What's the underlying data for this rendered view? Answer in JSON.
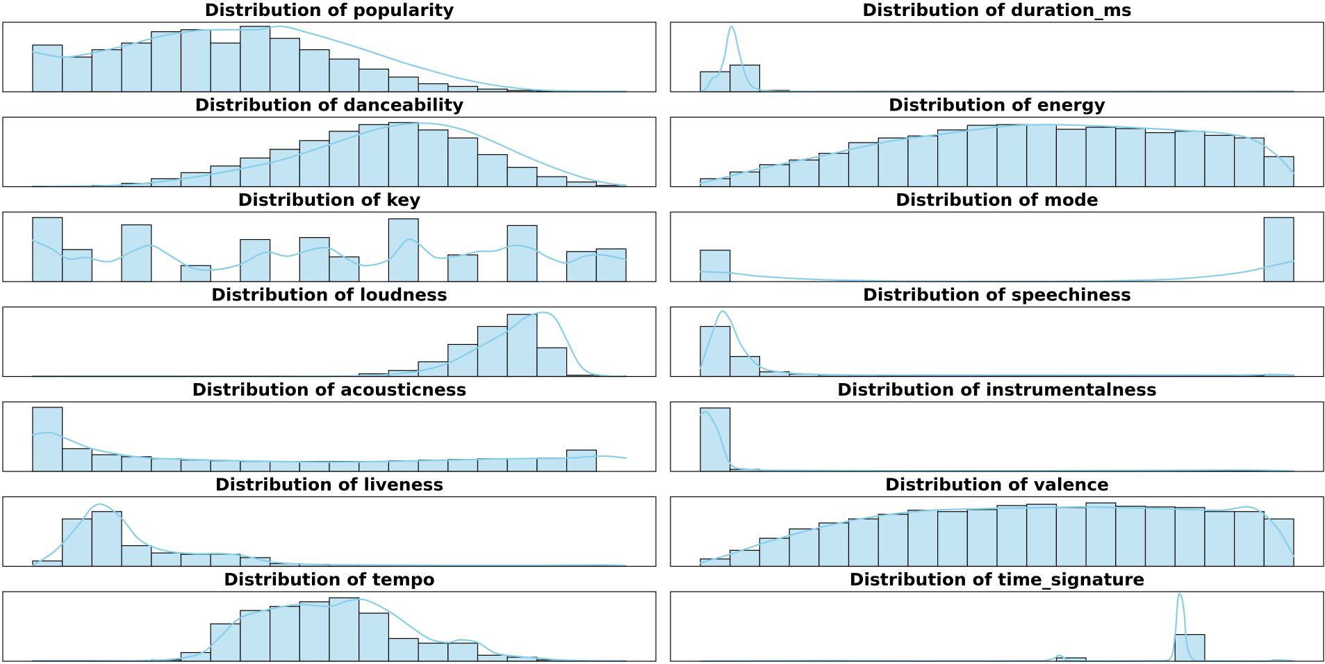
{
  "style": {
    "bar_fill": "#c3e5f3",
    "bar_edge": "#000000",
    "kde_color": "#87ceeb"
  },
  "chart_data": [
    {
      "type": "bar",
      "title": "Distribution of popularity",
      "values": [
        0.7,
        0.52,
        0.63,
        0.73,
        0.9,
        0.93,
        0.73,
        0.98,
        0.8,
        0.63,
        0.49,
        0.34,
        0.22,
        0.12,
        0.08,
        0.04,
        0.02,
        0.01,
        0.005,
        0.003
      ],
      "ylim": [
        0,
        1
      ],
      "kde": [
        [
          0.0,
          0.6
        ],
        [
          0.05,
          0.52
        ],
        [
          0.1,
          0.58
        ],
        [
          0.16,
          0.7
        ],
        [
          0.22,
          0.84
        ],
        [
          0.28,
          0.92
        ],
        [
          0.33,
          0.93
        ],
        [
          0.38,
          0.93
        ],
        [
          0.42,
          0.98
        ],
        [
          0.47,
          0.87
        ],
        [
          0.52,
          0.74
        ],
        [
          0.57,
          0.6
        ],
        [
          0.62,
          0.45
        ],
        [
          0.67,
          0.32
        ],
        [
          0.72,
          0.2
        ],
        [
          0.77,
          0.11
        ],
        [
          0.82,
          0.05
        ],
        [
          0.87,
          0.02
        ],
        [
          0.93,
          0.01
        ],
        [
          1.0,
          0.003
        ]
      ]
    },
    {
      "type": "bar",
      "title": "Distribution of duration_ms",
      "values": [
        0.3,
        0.4,
        0.02,
        0.005,
        0.003,
        0.002,
        0.001,
        0.001,
        0.001,
        0.001,
        0.001,
        0.001,
        0.001,
        0.001,
        0.001,
        0.001,
        0.001,
        0.001,
        0.001,
        0.001
      ],
      "ylim": [
        0,
        1
      ],
      "kde": [
        [
          0.0,
          0.0
        ],
        [
          0.01,
          0.05
        ],
        [
          0.02,
          0.2
        ],
        [
          0.03,
          0.25
        ],
        [
          0.04,
          0.5
        ],
        [
          0.047,
          0.85
        ],
        [
          0.052,
          0.98
        ],
        [
          0.058,
          0.88
        ],
        [
          0.065,
          0.6
        ],
        [
          0.075,
          0.28
        ],
        [
          0.085,
          0.1
        ],
        [
          0.1,
          0.03
        ],
        [
          0.12,
          0.01
        ],
        [
          0.16,
          0.005
        ],
        [
          0.3,
          0.002
        ],
        [
          1.0,
          0.001
        ]
      ]
    },
    {
      "type": "bar",
      "title": "Distribution of danceability",
      "values": [
        0.005,
        0.01,
        0.02,
        0.05,
        0.12,
        0.21,
        0.31,
        0.43,
        0.56,
        0.69,
        0.83,
        0.93,
        0.96,
        0.85,
        0.73,
        0.48,
        0.29,
        0.15,
        0.07,
        0.02
      ],
      "ylim": [
        0,
        1
      ],
      "kde": [
        [
          0.0,
          0.002
        ],
        [
          0.07,
          0.008
        ],
        [
          0.14,
          0.02
        ],
        [
          0.2,
          0.06
        ],
        [
          0.27,
          0.14
        ],
        [
          0.34,
          0.25
        ],
        [
          0.41,
          0.38
        ],
        [
          0.47,
          0.54
        ],
        [
          0.53,
          0.72
        ],
        [
          0.58,
          0.86
        ],
        [
          0.63,
          0.94
        ],
        [
          0.68,
          0.94
        ],
        [
          0.73,
          0.84
        ],
        [
          0.78,
          0.66
        ],
        [
          0.83,
          0.46
        ],
        [
          0.88,
          0.28
        ],
        [
          0.93,
          0.13
        ],
        [
          0.97,
          0.05
        ],
        [
          1.0,
          0.02
        ]
      ]
    },
    {
      "type": "bar",
      "title": "Distribution of energy",
      "values": [
        0.12,
        0.22,
        0.33,
        0.4,
        0.5,
        0.66,
        0.73,
        0.76,
        0.85,
        0.92,
        0.93,
        0.93,
        0.86,
        0.89,
        0.87,
        0.81,
        0.83,
        0.77,
        0.73,
        0.45
      ],
      "ylim": [
        0,
        1
      ],
      "kde": [
        [
          0.0,
          0.05
        ],
        [
          0.05,
          0.16
        ],
        [
          0.1,
          0.27
        ],
        [
          0.16,
          0.38
        ],
        [
          0.22,
          0.49
        ],
        [
          0.28,
          0.61
        ],
        [
          0.34,
          0.71
        ],
        [
          0.4,
          0.78
        ],
        [
          0.46,
          0.85
        ],
        [
          0.52,
          0.91
        ],
        [
          0.58,
          0.93
        ],
        [
          0.64,
          0.92
        ],
        [
          0.7,
          0.9
        ],
        [
          0.76,
          0.87
        ],
        [
          0.82,
          0.84
        ],
        [
          0.88,
          0.8
        ],
        [
          0.93,
          0.71
        ],
        [
          0.97,
          0.48
        ],
        [
          1.0,
          0.2
        ]
      ]
    },
    {
      "type": "bar",
      "title": "Distribution of key",
      "values": [
        0.96,
        0.48,
        0,
        0.85,
        0,
        0.24,
        0,
        0.63,
        0,
        0.66,
        0.37,
        0,
        0.94,
        0,
        0.4,
        0,
        0.84,
        0,
        0.45,
        0.49
      ],
      "ylim": [
        0,
        1
      ],
      "kde": [
        [
          0.0,
          0.62
        ],
        [
          0.03,
          0.5
        ],
        [
          0.06,
          0.34
        ],
        [
          0.09,
          0.36
        ],
        [
          0.13,
          0.3
        ],
        [
          0.17,
          0.46
        ],
        [
          0.2,
          0.54
        ],
        [
          0.23,
          0.4
        ],
        [
          0.27,
          0.2
        ],
        [
          0.31,
          0.18
        ],
        [
          0.35,
          0.26
        ],
        [
          0.38,
          0.4
        ],
        [
          0.4,
          0.44
        ],
        [
          0.43,
          0.38
        ],
        [
          0.47,
          0.48
        ],
        [
          0.5,
          0.5
        ],
        [
          0.53,
          0.34
        ],
        [
          0.56,
          0.24
        ],
        [
          0.6,
          0.33
        ],
        [
          0.63,
          0.62
        ],
        [
          0.65,
          0.57
        ],
        [
          0.68,
          0.36
        ],
        [
          0.72,
          0.39
        ],
        [
          0.75,
          0.45
        ],
        [
          0.78,
          0.46
        ],
        [
          0.81,
          0.54
        ],
        [
          0.84,
          0.5
        ],
        [
          0.87,
          0.36
        ],
        [
          0.9,
          0.28
        ],
        [
          0.93,
          0.38
        ],
        [
          0.96,
          0.4
        ],
        [
          1.0,
          0.33
        ]
      ]
    },
    {
      "type": "bar",
      "title": "Distribution of mode",
      "values": [
        0.47,
        0,
        0,
        0,
        0,
        0,
        0,
        0,
        0,
        0,
        0,
        0,
        0,
        0,
        0,
        0,
        0,
        0,
        0,
        0.96
      ],
      "ylim": [
        0,
        1
      ],
      "kde": [
        [
          0.0,
          0.15
        ],
        [
          0.05,
          0.13
        ],
        [
          0.1,
          0.08
        ],
        [
          0.2,
          0.03
        ],
        [
          0.35,
          0.005
        ],
        [
          0.5,
          0.001
        ],
        [
          0.65,
          0.005
        ],
        [
          0.78,
          0.03
        ],
        [
          0.86,
          0.08
        ],
        [
          0.92,
          0.15
        ],
        [
          0.96,
          0.23
        ],
        [
          1.0,
          0.31
        ]
      ]
    },
    {
      "type": "bar",
      "title": "Distribution of loudness",
      "values": [
        0.001,
        0.001,
        0.001,
        0.001,
        0.001,
        0.001,
        0.001,
        0.002,
        0.003,
        0.005,
        0.01,
        0.04,
        0.09,
        0.22,
        0.48,
        0.75,
        0.93,
        0.43,
        0.02,
        0.005
      ],
      "ylim": [
        0,
        1
      ],
      "kde": [
        [
          0.0,
          0.001
        ],
        [
          0.4,
          0.002
        ],
        [
          0.5,
          0.005
        ],
        [
          0.55,
          0.01
        ],
        [
          0.6,
          0.03
        ],
        [
          0.65,
          0.08
        ],
        [
          0.7,
          0.2
        ],
        [
          0.75,
          0.43
        ],
        [
          0.8,
          0.68
        ],
        [
          0.83,
          0.88
        ],
        [
          0.86,
          0.96
        ],
        [
          0.88,
          0.88
        ],
        [
          0.9,
          0.55
        ],
        [
          0.92,
          0.2
        ],
        [
          0.94,
          0.05
        ],
        [
          0.97,
          0.01
        ],
        [
          1.0,
          0.003
        ]
      ]
    },
    {
      "type": "bar",
      "title": "Distribution of speechiness",
      "values": [
        0.75,
        0.3,
        0.07,
        0.035,
        0.02,
        0.015,
        0.012,
        0.012,
        0.012,
        0.012,
        0.012,
        0.012,
        0.012,
        0.012,
        0.012,
        0.012,
        0.012,
        0.012,
        0.015,
        0.025
      ],
      "ylim": [
        0,
        1
      ],
      "kde": [
        [
          0.0,
          0.12
        ],
        [
          0.02,
          0.65
        ],
        [
          0.035,
          0.97
        ],
        [
          0.05,
          0.85
        ],
        [
          0.07,
          0.45
        ],
        [
          0.1,
          0.15
        ],
        [
          0.14,
          0.06
        ],
        [
          0.2,
          0.03
        ],
        [
          0.3,
          0.02
        ],
        [
          0.5,
          0.02
        ],
        [
          0.7,
          0.02
        ],
        [
          0.9,
          0.02
        ],
        [
          0.96,
          0.03
        ],
        [
          1.0,
          0.02
        ]
      ]
    },
    {
      "type": "bar",
      "title": "Distribution of acousticness",
      "values": [
        0.96,
        0.34,
        0.25,
        0.22,
        0.19,
        0.17,
        0.16,
        0.15,
        0.15,
        0.15,
        0.15,
        0.15,
        0.16,
        0.17,
        0.18,
        0.19,
        0.19,
        0.2,
        0.32,
        0.0
      ],
      "ylim": [
        0,
        1
      ],
      "kde": [
        [
          0.0,
          0.55
        ],
        [
          0.03,
          0.58
        ],
        [
          0.06,
          0.48
        ],
        [
          0.1,
          0.34
        ],
        [
          0.15,
          0.25
        ],
        [
          0.2,
          0.2
        ],
        [
          0.3,
          0.17
        ],
        [
          0.4,
          0.15
        ],
        [
          0.5,
          0.14
        ],
        [
          0.6,
          0.15
        ],
        [
          0.7,
          0.17
        ],
        [
          0.8,
          0.19
        ],
        [
          0.9,
          0.2
        ],
        [
          0.96,
          0.23
        ],
        [
          1.0,
          0.2
        ]
      ]
    },
    {
      "type": "bar",
      "title": "Distribution of instrumentalness",
      "values": [
        0.95,
        0.03,
        0.01,
        0.008,
        0.006,
        0.005,
        0.005,
        0.005,
        0.005,
        0.005,
        0.005,
        0.005,
        0.005,
        0.005,
        0.005,
        0.005,
        0.005,
        0.005,
        0.005,
        0.005
      ],
      "ylim": [
        0,
        1
      ],
      "kde": [
        [
          0.0,
          0.85
        ],
        [
          0.012,
          0.88
        ],
        [
          0.03,
          0.6
        ],
        [
          0.05,
          0.12
        ],
        [
          0.08,
          0.03
        ],
        [
          0.15,
          0.015
        ],
        [
          0.3,
          0.01
        ],
        [
          0.6,
          0.01
        ],
        [
          0.9,
          0.02
        ],
        [
          0.96,
          0.015
        ],
        [
          1.0,
          0.005
        ]
      ]
    },
    {
      "type": "bar",
      "title": "Distribution of liveness",
      "values": [
        0.08,
        0.71,
        0.82,
        0.31,
        0.2,
        0.18,
        0.18,
        0.13,
        0.04,
        0.03,
        0.02,
        0.02,
        0.02,
        0.015,
        0.015,
        0.015,
        0.015,
        0.015,
        0.015,
        0.015
      ],
      "ylim": [
        0,
        1
      ],
      "kde": [
        [
          0.0,
          0.01
        ],
        [
          0.04,
          0.25
        ],
        [
          0.08,
          0.65
        ],
        [
          0.1,
          0.88
        ],
        [
          0.12,
          0.92
        ],
        [
          0.15,
          0.72
        ],
        [
          0.18,
          0.4
        ],
        [
          0.22,
          0.24
        ],
        [
          0.27,
          0.19
        ],
        [
          0.32,
          0.19
        ],
        [
          0.36,
          0.15
        ],
        [
          0.4,
          0.07
        ],
        [
          0.46,
          0.03
        ],
        [
          0.55,
          0.02
        ],
        [
          0.7,
          0.015
        ],
        [
          0.85,
          0.015
        ],
        [
          0.96,
          0.02
        ],
        [
          1.0,
          0.01
        ]
      ]
    },
    {
      "type": "bar",
      "title": "Distribution of valence",
      "values": [
        0.11,
        0.24,
        0.42,
        0.56,
        0.65,
        0.71,
        0.78,
        0.84,
        0.82,
        0.85,
        0.91,
        0.93,
        0.88,
        0.95,
        0.9,
        0.89,
        0.88,
        0.82,
        0.82,
        0.71
      ],
      "ylim": [
        0,
        1
      ],
      "kde": [
        [
          0.0,
          0.05
        ],
        [
          0.05,
          0.18
        ],
        [
          0.1,
          0.33
        ],
        [
          0.15,
          0.46
        ],
        [
          0.21,
          0.6
        ],
        [
          0.27,
          0.71
        ],
        [
          0.33,
          0.79
        ],
        [
          0.39,
          0.84
        ],
        [
          0.46,
          0.86
        ],
        [
          0.52,
          0.87
        ],
        [
          0.58,
          0.88
        ],
        [
          0.64,
          0.89
        ],
        [
          0.7,
          0.88
        ],
        [
          0.76,
          0.87
        ],
        [
          0.82,
          0.85
        ],
        [
          0.88,
          0.84
        ],
        [
          0.93,
          0.88
        ],
        [
          0.97,
          0.6
        ],
        [
          1.0,
          0.15
        ]
      ]
    },
    {
      "type": "bar",
      "title": "Distribution of tempo",
      "values": [
        0.001,
        0.001,
        0.002,
        0.003,
        0.02,
        0.13,
        0.56,
        0.76,
        0.82,
        0.89,
        0.95,
        0.72,
        0.34,
        0.27,
        0.27,
        0.09,
        0.06,
        0.02,
        0.005,
        0.002
      ],
      "ylim": [
        0,
        1
      ],
      "kde": [
        [
          0.0,
          0.001
        ],
        [
          0.15,
          0.003
        ],
        [
          0.22,
          0.02
        ],
        [
          0.26,
          0.06
        ],
        [
          0.29,
          0.15
        ],
        [
          0.32,
          0.4
        ],
        [
          0.35,
          0.65
        ],
        [
          0.4,
          0.78
        ],
        [
          0.45,
          0.85
        ],
        [
          0.5,
          0.82
        ],
        [
          0.53,
          0.9
        ],
        [
          0.56,
          0.92
        ],
        [
          0.6,
          0.75
        ],
        [
          0.64,
          0.5
        ],
        [
          0.67,
          0.33
        ],
        [
          0.7,
          0.28
        ],
        [
          0.72,
          0.32
        ],
        [
          0.75,
          0.28
        ],
        [
          0.78,
          0.12
        ],
        [
          0.82,
          0.07
        ],
        [
          0.86,
          0.04
        ],
        [
          0.9,
          0.015
        ],
        [
          1.0,
          0.003
        ]
      ]
    },
    {
      "type": "bar",
      "title": "Distribution of time_signature",
      "values": [
        0,
        0,
        0,
        0,
        0,
        0,
        0,
        0,
        0,
        0,
        0,
        0,
        0.05,
        0,
        0,
        0,
        0.4,
        0,
        0,
        0
      ],
      "ylim": [
        0,
        1
      ],
      "kde": [
        [
          0.0,
          0.002
        ],
        [
          0.1,
          0.005
        ],
        [
          0.2,
          0.01
        ],
        [
          0.3,
          0.005
        ],
        [
          0.55,
          0.005
        ],
        [
          0.58,
          0.01
        ],
        [
          0.595,
          0.04
        ],
        [
          0.605,
          0.09
        ],
        [
          0.615,
          0.04
        ],
        [
          0.63,
          0.005
        ],
        [
          0.75,
          0.005
        ],
        [
          0.79,
          0.02
        ],
        [
          0.8,
          0.4
        ],
        [
          0.805,
          0.95
        ],
        [
          0.81,
          0.98
        ],
        [
          0.815,
          0.75
        ],
        [
          0.82,
          0.25
        ],
        [
          0.83,
          0.03
        ],
        [
          0.85,
          0.005
        ],
        [
          0.95,
          0.002
        ],
        [
          0.97,
          0.02
        ],
        [
          1.0,
          0.005
        ]
      ]
    }
  ]
}
